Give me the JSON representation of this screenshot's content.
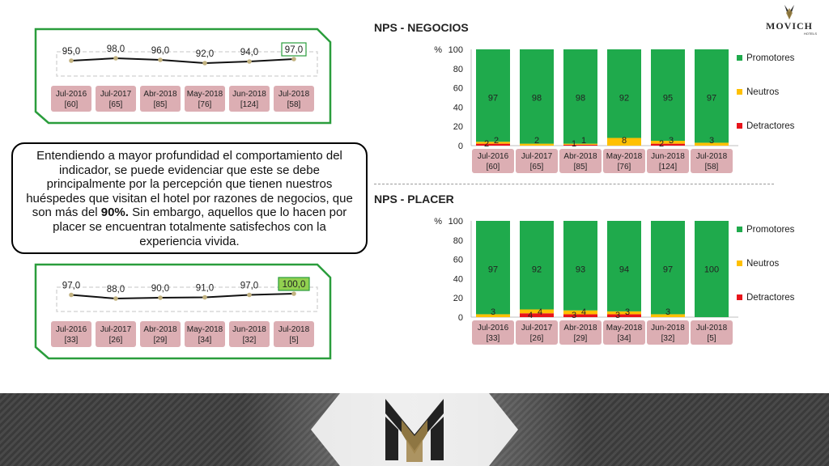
{
  "brand": {
    "logo_text": "MOVICH",
    "logo_subtext": "HOTELS",
    "gold": "#9a8040",
    "dark": "#2b2b2b"
  },
  "callout": {
    "text_before": "Entendiendo a mayor profundidad el comportamiento del indicador, se puede evidenciar que este se debe principalmente por la percepción que tienen nuestros huéspedes que visitan el hotel por razones de negocios, que son más del ",
    "text_bold": "90%.",
    "text_after": " Sin embargo, aquellos que lo hacen por placer se encuentran totalmente satisfechos con la experiencia vivida."
  },
  "colors": {
    "promotores": "#1faa4c",
    "neutros": "#ffc000",
    "detractores": "#e8141b",
    "label_bg": "#dcaeb3",
    "panel_border": "#2a9d3c"
  },
  "chart_data": [
    {
      "id": "trend-negocios",
      "type": "line",
      "categories": [
        "Jul-2016",
        "Jul-2017",
        "Abr-2018",
        "May-2018",
        "Jun-2018",
        "Jul-2018"
      ],
      "counts": [
        "[60]",
        "[65]",
        "[85]",
        "[76]",
        "[124]",
        "[58]"
      ],
      "values": [
        95.0,
        98.0,
        96.0,
        92.0,
        94.0,
        97.0
      ],
      "value_labels": [
        "95,0",
        "98,0",
        "96,0",
        "92,0",
        "94,0",
        "97,0"
      ],
      "highlight_index": 5
    },
    {
      "id": "trend-placer",
      "type": "line",
      "categories": [
        "Jul-2016",
        "Jul-2017",
        "Abr-2018",
        "May-2018",
        "Jun-2018",
        "Jul-2018"
      ],
      "counts": [
        "[33]",
        "[26]",
        "[29]",
        "[34]",
        "[32]",
        "[5]"
      ],
      "values": [
        97.0,
        88.0,
        90.0,
        91.0,
        97.0,
        100.0
      ],
      "value_labels": [
        "97,0",
        "88,0",
        "90,0",
        "91,0",
        "97,0",
        "100,0"
      ],
      "highlight_index": 5
    },
    {
      "id": "nps-negocios",
      "type": "bar",
      "stacked": true,
      "title": "NPS - NEGOCIOS",
      "ylabel": "%",
      "ylim": [
        0,
        100
      ],
      "yticks": [
        0,
        20,
        40,
        60,
        80,
        100
      ],
      "categories": [
        "Jul-2016",
        "Jul-2017",
        "Abr-2018",
        "May-2018",
        "Jun-2018",
        "Jul-2018"
      ],
      "counts": [
        "[60]",
        "[65]",
        "[85]",
        "[76]",
        "[124]",
        "[58]"
      ],
      "series": [
        {
          "name": "Detractores",
          "values": [
            2,
            0,
            1,
            0,
            2,
            0
          ],
          "labels": [
            "2",
            "",
            "1",
            "",
            "2",
            ""
          ]
        },
        {
          "name": "Neutros",
          "values": [
            2,
            2,
            1,
            8,
            3,
            3
          ],
          "labels": [
            "2",
            "2",
            "1",
            "8",
            "3",
            "3"
          ]
        },
        {
          "name": "Promotores",
          "values": [
            97,
            98,
            98,
            92,
            95,
            97
          ],
          "labels": [
            "97",
            "98",
            "98",
            "92",
            "95",
            "97"
          ]
        }
      ],
      "legend": "right"
    },
    {
      "id": "nps-placer",
      "type": "bar",
      "stacked": true,
      "title": "NPS - PLACER",
      "ylabel": "%",
      "ylim": [
        0,
        100
      ],
      "yticks": [
        0,
        20,
        40,
        60,
        80,
        100
      ],
      "categories": [
        "Jul-2016",
        "Jul-2017",
        "Abr-2018",
        "May-2018",
        "Jun-2018",
        "Jul-2018"
      ],
      "counts": [
        "[33]",
        "[26]",
        "[29]",
        "[34]",
        "[32]",
        "[5]"
      ],
      "series": [
        {
          "name": "Detractores",
          "values": [
            0,
            4,
            3,
            3,
            0,
            0
          ],
          "labels": [
            "",
            "4",
            "3",
            "3",
            "",
            ""
          ]
        },
        {
          "name": "Neutros",
          "values": [
            3,
            4,
            4,
            3,
            3,
            0
          ],
          "labels": [
            "3",
            "4",
            "4",
            "3",
            "3",
            ""
          ]
        },
        {
          "name": "Promotores",
          "values": [
            97,
            92,
            93,
            94,
            97,
            100
          ],
          "labels": [
            "97",
            "92",
            "93",
            "94",
            "97",
            "100"
          ]
        }
      ],
      "legend": "right"
    }
  ]
}
